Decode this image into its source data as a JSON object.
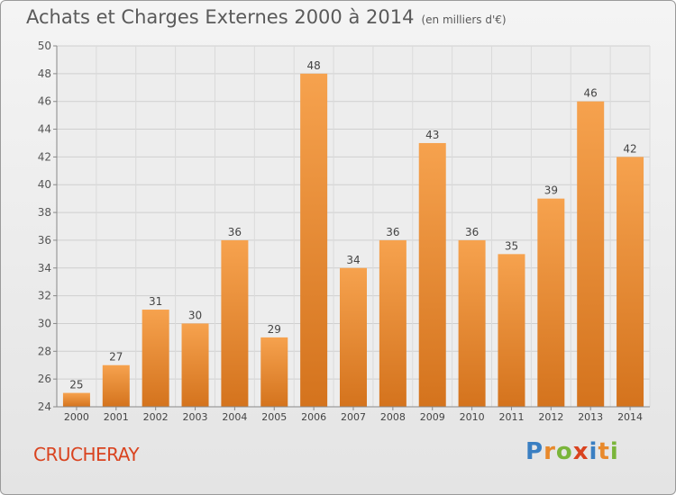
{
  "title": "Achats et Charges Externes 2000 à 2014",
  "subtitle": "(en milliers d'€)",
  "commune": "CRUCHERAY",
  "logo": {
    "text": "Proxiti",
    "letters": [
      {
        "ch": "P",
        "color": "#3a7fc2"
      },
      {
        "ch": "r",
        "color": "#e8892b"
      },
      {
        "ch": "o",
        "color": "#7ab53a"
      },
      {
        "ch": "x",
        "color": "#d9431f"
      },
      {
        "ch": "i",
        "color": "#3a7fc2"
      },
      {
        "ch": "t",
        "color": "#e8892b"
      },
      {
        "ch": "i",
        "color": "#7ab53a"
      }
    ]
  },
  "colors": {
    "bar_top": "#f6a24e",
    "bar_bottom": "#d4731d",
    "title": "#5a5a5a",
    "commune": "#d9431f"
  },
  "chart_data": {
    "type": "bar",
    "title": "Achats et Charges Externes 2000 à 2014",
    "subtitle": "(en milliers d'€)",
    "xlabel": "",
    "ylabel": "",
    "categories": [
      "2000",
      "2001",
      "2002",
      "2003",
      "2004",
      "2005",
      "2006",
      "2007",
      "2008",
      "2009",
      "2010",
      "2011",
      "2012",
      "2013",
      "2014"
    ],
    "values": [
      25,
      27,
      31,
      30,
      36,
      29,
      48,
      34,
      36,
      43,
      36,
      35,
      39,
      46,
      42
    ],
    "ylim": [
      24,
      50
    ],
    "yticks": [
      24,
      26,
      28,
      30,
      32,
      34,
      36,
      38,
      40,
      42,
      44,
      46,
      48,
      50
    ],
    "grid": true,
    "legend": "none"
  }
}
